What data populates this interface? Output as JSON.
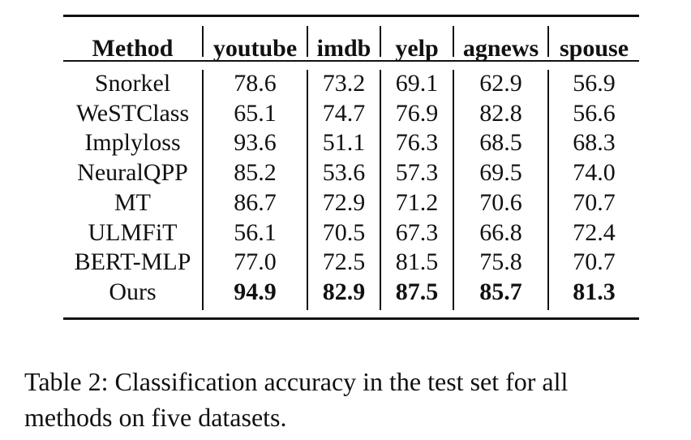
{
  "table": {
    "headers": [
      "Method",
      "youtube",
      "imdb",
      "yelp",
      "agnews",
      "spouse"
    ],
    "rows": [
      {
        "method": "Snorkel",
        "values": [
          "78.6",
          "73.2",
          "69.1",
          "62.9",
          "56.9"
        ],
        "bold": false
      },
      {
        "method": "WeSTClass",
        "values": [
          "65.1",
          "74.7",
          "76.9",
          "82.8",
          "56.6"
        ],
        "bold": false
      },
      {
        "method": "Implyloss",
        "values": [
          "93.6",
          "51.1",
          "76.3",
          "68.5",
          "68.3"
        ],
        "bold": false
      },
      {
        "method": "NeuralQPP",
        "values": [
          "85.2",
          "53.6",
          "57.3",
          "69.5",
          "74.0"
        ],
        "bold": false
      },
      {
        "method": "MT",
        "values": [
          "86.7",
          "72.9",
          "71.2",
          "70.6",
          "70.7"
        ],
        "bold": false
      },
      {
        "method": "ULMFiT",
        "values": [
          "56.1",
          "70.5",
          "67.3",
          "66.8",
          "72.4"
        ],
        "bold": false
      },
      {
        "method": "BERT-MLP",
        "values": [
          "77.0",
          "72.5",
          "81.5",
          "75.8",
          "70.7"
        ],
        "bold": false
      },
      {
        "method": "Ours",
        "values": [
          "94.9",
          "82.9",
          "87.5",
          "85.7",
          "81.3"
        ],
        "bold": true
      }
    ]
  },
  "caption": {
    "line1": "Table 2:  Classification accuracy in the test set for all",
    "line2": "methods on five datasets."
  }
}
